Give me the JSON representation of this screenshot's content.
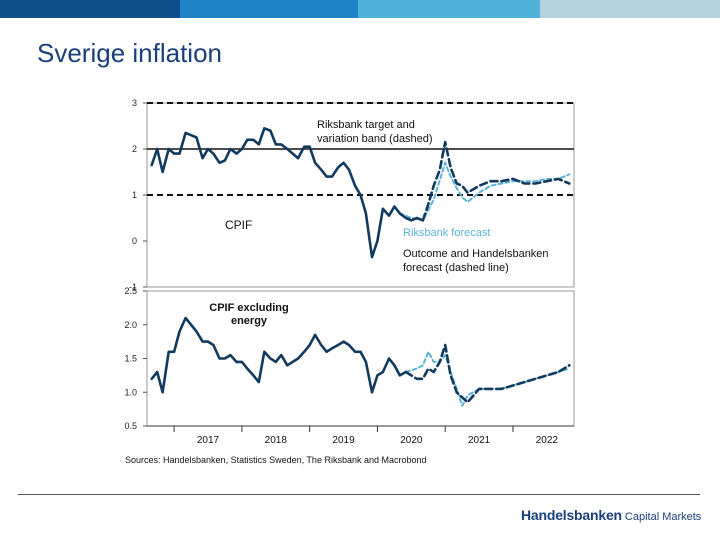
{
  "header": {
    "colors": [
      "#0f4d8c",
      "#1e84c6",
      "#4fb3d9",
      "#b6d2de"
    ]
  },
  "slide": {
    "title": "Sverige inflation"
  },
  "chart_data": [
    {
      "type": "line",
      "title": "CPIF",
      "ylim": [
        -1,
        3
      ],
      "yticks": [
        "-1",
        "0",
        "1",
        "2",
        "3"
      ],
      "xrange": [
        2016.6,
        2022.9
      ],
      "reference_lines": [
        {
          "name": "Riksbank target",
          "value": 2,
          "style": "solid"
        },
        {
          "name": "Variation band upper",
          "value": 3,
          "style": "dashed"
        },
        {
          "name": "Variation band lower",
          "value": 1,
          "style": "dashed"
        }
      ],
      "annotations": {
        "target": [
          "Riksbank target and",
          "variation band (dashed)"
        ],
        "series_label": "CPIF",
        "forecast_label": "Riksbank forecast",
        "outcome_label": [
          "Outcome and Handelsbanken",
          "forecast (dashed line)"
        ]
      },
      "series": [
        {
          "name": "Outcome",
          "style": "solid",
          "color": "#123a5e",
          "x": [
            2016.67,
            2016.75,
            2016.83,
            2016.92,
            2017.0,
            2017.08,
            2017.17,
            2017.25,
            2017.33,
            2017.42,
            2017.5,
            2017.58,
            2017.67,
            2017.75,
            2017.83,
            2017.92,
            2018.0,
            2018.08,
            2018.17,
            2018.25,
            2018.33,
            2018.42,
            2018.5,
            2018.58,
            2018.67,
            2018.75,
            2018.83,
            2018.92,
            2019.0,
            2019.08,
            2019.17,
            2019.25,
            2019.33,
            2019.42,
            2019.5,
            2019.58,
            2019.67,
            2019.75,
            2019.83,
            2019.92,
            2020.0,
            2020.08,
            2020.17,
            2020.25,
            2020.33,
            2020.42,
            2020.5,
            2020.58,
            2020.67
          ],
          "values": [
            1.65,
            2.0,
            1.5,
            2.0,
            1.9,
            1.9,
            2.35,
            2.3,
            2.25,
            1.8,
            2.0,
            1.9,
            1.7,
            1.75,
            2.0,
            1.9,
            2.0,
            2.2,
            2.2,
            2.1,
            2.45,
            2.4,
            2.1,
            2.1,
            2.0,
            1.9,
            1.8,
            2.05,
            2.05,
            1.7,
            1.55,
            1.4,
            1.4,
            1.6,
            1.7,
            1.55,
            1.2,
            1.0,
            0.6,
            -0.35,
            0.0,
            0.7,
            0.55,
            0.75,
            0.6,
            0.5,
            0.45,
            0.5,
            0.45
          ]
        },
        {
          "name": "Handelsbanken forecast",
          "style": "dashed",
          "color": "#123a5e",
          "x": [
            2020.67,
            2020.75,
            2020.83,
            2020.92,
            2021.0,
            2021.08,
            2021.17,
            2021.25,
            2021.33,
            2021.5,
            2021.67,
            2021.83,
            2022.0,
            2022.17,
            2022.33,
            2022.5,
            2022.67,
            2022.83
          ],
          "values": [
            0.45,
            0.8,
            1.2,
            1.55,
            2.15,
            1.6,
            1.25,
            1.2,
            1.05,
            1.2,
            1.3,
            1.3,
            1.35,
            1.25,
            1.25,
            1.3,
            1.35,
            1.25
          ]
        },
        {
          "name": "Riksbank forecast",
          "style": "dashed",
          "color": "#5cb3d6",
          "x": [
            2020.33,
            2020.5,
            2020.67,
            2020.83,
            2021.0,
            2021.08,
            2021.17,
            2021.25,
            2021.33,
            2021.5,
            2021.67,
            2021.83,
            2022.0,
            2022.17,
            2022.33,
            2022.5,
            2022.67,
            2022.83
          ],
          "values": [
            0.6,
            0.5,
            0.45,
            0.9,
            1.7,
            1.4,
            1.15,
            0.95,
            0.85,
            1.05,
            1.2,
            1.25,
            1.3,
            1.3,
            1.3,
            1.35,
            1.35,
            1.45
          ]
        }
      ]
    },
    {
      "type": "line",
      "title": "CPIF excluding energy",
      "ylim": [
        0.5,
        2.5
      ],
      "yticks": [
        "0.5",
        "1.0",
        "1.5",
        "2.0",
        "2.5"
      ],
      "xrange": [
        2016.6,
        2022.9
      ],
      "categories": [
        "2017",
        "2018",
        "2019",
        "2020",
        "2021",
        "2022"
      ],
      "annotations": {
        "series_label": [
          "CPIF excluding",
          "energy"
        ]
      },
      "series": [
        {
          "name": "Outcome",
          "style": "solid",
          "color": "#123a5e",
          "x": [
            2016.67,
            2016.75,
            2016.83,
            2016.92,
            2017.0,
            2017.08,
            2017.17,
            2017.25,
            2017.33,
            2017.42,
            2017.5,
            2017.58,
            2017.67,
            2017.75,
            2017.83,
            2017.92,
            2018.0,
            2018.08,
            2018.17,
            2018.25,
            2018.33,
            2018.42,
            2018.5,
            2018.58,
            2018.67,
            2018.75,
            2018.83,
            2018.92,
            2019.0,
            2019.08,
            2019.17,
            2019.25,
            2019.33,
            2019.42,
            2019.5,
            2019.58,
            2019.67,
            2019.75,
            2019.83,
            2019.92,
            2020.0,
            2020.08,
            2020.17,
            2020.25,
            2020.33,
            2020.42
          ],
          "values": [
            1.2,
            1.3,
            1.0,
            1.6,
            1.6,
            1.9,
            2.1,
            2.0,
            1.9,
            1.75,
            1.75,
            1.7,
            1.5,
            1.5,
            1.55,
            1.45,
            1.45,
            1.35,
            1.25,
            1.15,
            1.6,
            1.5,
            1.45,
            1.55,
            1.4,
            1.45,
            1.5,
            1.6,
            1.7,
            1.85,
            1.7,
            1.6,
            1.65,
            1.7,
            1.75,
            1.7,
            1.6,
            1.6,
            1.45,
            1.0,
            1.25,
            1.3,
            1.5,
            1.4,
            1.25,
            1.3
          ]
        },
        {
          "name": "Handelsbanken forecast",
          "style": "dashed",
          "color": "#123a5e",
          "x": [
            2020.42,
            2020.5,
            2020.58,
            2020.67,
            2020.75,
            2020.83,
            2020.92,
            2021.0,
            2021.08,
            2021.17,
            2021.33,
            2021.5,
            2021.67,
            2021.83,
            2022.0,
            2022.17,
            2022.33,
            2022.5,
            2022.67,
            2022.83
          ],
          "values": [
            1.3,
            1.25,
            1.2,
            1.2,
            1.35,
            1.3,
            1.45,
            1.7,
            1.25,
            1.0,
            0.85,
            1.05,
            1.05,
            1.05,
            1.1,
            1.15,
            1.2,
            1.25,
            1.3,
            1.4
          ]
        },
        {
          "name": "Riksbank forecast",
          "style": "dashed",
          "color": "#5cb3d6",
          "x": [
            2020.42,
            2020.58,
            2020.67,
            2020.75,
            2020.83,
            2020.92,
            2021.0,
            2021.08,
            2021.17,
            2021.25,
            2021.33,
            2021.5,
            2021.67,
            2021.83,
            2022.0,
            2022.17,
            2022.33,
            2022.5,
            2022.67,
            2022.83
          ],
          "values": [
            1.3,
            1.35,
            1.4,
            1.6,
            1.45,
            1.45,
            1.55,
            1.3,
            1.05,
            0.8,
            0.95,
            1.05,
            1.05,
            1.05,
            1.1,
            1.15,
            1.2,
            1.25,
            1.3,
            1.35
          ]
        }
      ]
    }
  ],
  "source_note": "Sources: Handelsbanken, Statistics Sweden, The Riksbank and Macrobond",
  "footer": {
    "brand": "Handelsbanken",
    "brand_sub": "Capital Markets"
  }
}
